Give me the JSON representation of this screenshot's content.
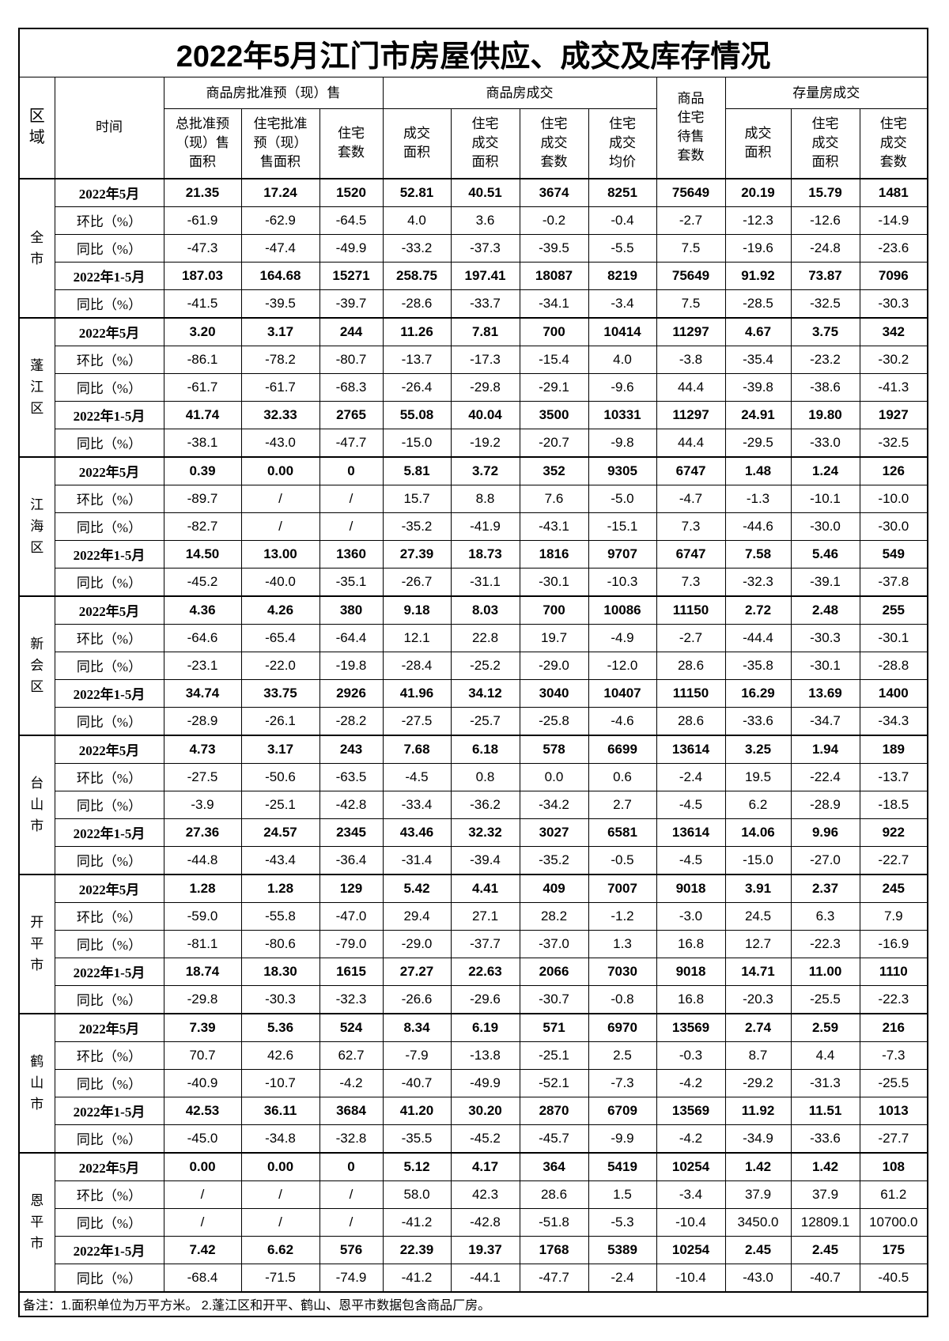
{
  "title": "2022年5月江门市房屋供应、成交及库存情况",
  "headers": {
    "region": "区域",
    "time": "时间",
    "group_presale": "商品房批准预（现）售",
    "group_deal": "商品房成交",
    "unsold": "商品住宅待售套数",
    "group_stock": "存量房成交",
    "columns": [
      "总批准预（现）售面积",
      "住宅批准预（现）售面积",
      "住宅套数",
      "成交面积",
      "住宅成交面积",
      "住宅成交套数",
      "住宅成交均价",
      "成交面积",
      "住宅成交面积",
      "住宅成交套数"
    ]
  },
  "regions": [
    {
      "name": "全市",
      "rows": [
        {
          "time": "2022年5月",
          "bold": true,
          "values": [
            "21.35",
            "17.24",
            "1520",
            "52.81",
            "40.51",
            "3674",
            "8251",
            "75649",
            "20.19",
            "15.79",
            "1481"
          ]
        },
        {
          "time": "环比（%）",
          "values": [
            "-61.9",
            "-62.9",
            "-64.5",
            "4.0",
            "3.6",
            "-0.2",
            "-0.4",
            "-2.7",
            "-12.3",
            "-12.6",
            "-14.9"
          ]
        },
        {
          "time": "同比（%）",
          "values": [
            "-47.3",
            "-47.4",
            "-49.9",
            "-33.2",
            "-37.3",
            "-39.5",
            "-5.5",
            "7.5",
            "-19.6",
            "-24.8",
            "-23.6"
          ]
        },
        {
          "time": "2022年1-5月",
          "bold": true,
          "values": [
            "187.03",
            "164.68",
            "15271",
            "258.75",
            "197.41",
            "18087",
            "8219",
            "75649",
            "91.92",
            "73.87",
            "7096"
          ]
        },
        {
          "time": "同比（%）",
          "values": [
            "-41.5",
            "-39.5",
            "-39.7",
            "-28.6",
            "-33.7",
            "-34.1",
            "-3.4",
            "7.5",
            "-28.5",
            "-32.5",
            "-30.3"
          ]
        }
      ]
    },
    {
      "name": "蓬江区",
      "rows": [
        {
          "time": "2022年5月",
          "bold": true,
          "values": [
            "3.20",
            "3.17",
            "244",
            "11.26",
            "7.81",
            "700",
            "10414",
            "11297",
            "4.67",
            "3.75",
            "342"
          ]
        },
        {
          "time": "环比（%）",
          "values": [
            "-86.1",
            "-78.2",
            "-80.7",
            "-13.7",
            "-17.3",
            "-15.4",
            "4.0",
            "-3.8",
            "-35.4",
            "-23.2",
            "-30.2"
          ]
        },
        {
          "time": "同比（%）",
          "values": [
            "-61.7",
            "-61.7",
            "-68.3",
            "-26.4",
            "-29.8",
            "-29.1",
            "-9.6",
            "44.4",
            "-39.8",
            "-38.6",
            "-41.3"
          ]
        },
        {
          "time": "2022年1-5月",
          "bold": true,
          "values": [
            "41.74",
            "32.33",
            "2765",
            "55.08",
            "40.04",
            "3500",
            "10331",
            "11297",
            "24.91",
            "19.80",
            "1927"
          ]
        },
        {
          "time": "同比（%）",
          "values": [
            "-38.1",
            "-43.0",
            "-47.7",
            "-15.0",
            "-19.2",
            "-20.7",
            "-9.8",
            "44.4",
            "-29.5",
            "-33.0",
            "-32.5"
          ]
        }
      ]
    },
    {
      "name": "江海区",
      "rows": [
        {
          "time": "2022年5月",
          "bold": true,
          "values": [
            "0.39",
            "0.00",
            "0",
            "5.81",
            "3.72",
            "352",
            "9305",
            "6747",
            "1.48",
            "1.24",
            "126"
          ]
        },
        {
          "time": "环比（%）",
          "values": [
            "-89.7",
            "/",
            "/",
            "15.7",
            "8.8",
            "7.6",
            "-5.0",
            "-4.7",
            "-1.3",
            "-10.1",
            "-10.0"
          ]
        },
        {
          "time": "同比（%）",
          "values": [
            "-82.7",
            "/",
            "/",
            "-35.2",
            "-41.9",
            "-43.1",
            "-15.1",
            "7.3",
            "-44.6",
            "-30.0",
            "-30.0"
          ]
        },
        {
          "time": "2022年1-5月",
          "bold": true,
          "values": [
            "14.50",
            "13.00",
            "1360",
            "27.39",
            "18.73",
            "1816",
            "9707",
            "6747",
            "7.58",
            "5.46",
            "549"
          ]
        },
        {
          "time": "同比（%）",
          "values": [
            "-45.2",
            "-40.0",
            "-35.1",
            "-26.7",
            "-31.1",
            "-30.1",
            "-10.3",
            "7.3",
            "-32.3",
            "-39.1",
            "-37.8"
          ]
        }
      ]
    },
    {
      "name": "新会区",
      "rows": [
        {
          "time": "2022年5月",
          "bold": true,
          "values": [
            "4.36",
            "4.26",
            "380",
            "9.18",
            "8.03",
            "700",
            "10086",
            "11150",
            "2.72",
            "2.48",
            "255"
          ]
        },
        {
          "time": "环比（%）",
          "values": [
            "-64.6",
            "-65.4",
            "-64.4",
            "12.1",
            "22.8",
            "19.7",
            "-4.9",
            "-2.7",
            "-44.4",
            "-30.3",
            "-30.1"
          ]
        },
        {
          "time": "同比（%）",
          "values": [
            "-23.1",
            "-22.0",
            "-19.8",
            "-28.4",
            "-25.2",
            "-29.0",
            "-12.0",
            "28.6",
            "-35.8",
            "-30.1",
            "-28.8"
          ]
        },
        {
          "time": "2022年1-5月",
          "bold": true,
          "values": [
            "34.74",
            "33.75",
            "2926",
            "41.96",
            "34.12",
            "3040",
            "10407",
            "11150",
            "16.29",
            "13.69",
            "1400"
          ]
        },
        {
          "time": "同比（%）",
          "values": [
            "-28.9",
            "-26.1",
            "-28.2",
            "-27.5",
            "-25.7",
            "-25.8",
            "-4.6",
            "28.6",
            "-33.6",
            "-34.7",
            "-34.3"
          ]
        }
      ]
    },
    {
      "name": "台山市",
      "rows": [
        {
          "time": "2022年5月",
          "bold": true,
          "values": [
            "4.73",
            "3.17",
            "243",
            "7.68",
            "6.18",
            "578",
            "6699",
            "13614",
            "3.25",
            "1.94",
            "189"
          ]
        },
        {
          "time": "环比（%）",
          "values": [
            "-27.5",
            "-50.6",
            "-63.5",
            "-4.5",
            "0.8",
            "0.0",
            "0.6",
            "-2.4",
            "19.5",
            "-22.4",
            "-13.7"
          ]
        },
        {
          "time": "同比（%）",
          "values": [
            "-3.9",
            "-25.1",
            "-42.8",
            "-33.4",
            "-36.2",
            "-34.2",
            "2.7",
            "-4.5",
            "6.2",
            "-28.9",
            "-18.5"
          ]
        },
        {
          "time": "2022年1-5月",
          "bold": true,
          "values": [
            "27.36",
            "24.57",
            "2345",
            "43.46",
            "32.32",
            "3027",
            "6581",
            "13614",
            "14.06",
            "9.96",
            "922"
          ]
        },
        {
          "time": "同比（%）",
          "values": [
            "-44.8",
            "-43.4",
            "-36.4",
            "-31.4",
            "-39.4",
            "-35.2",
            "-0.5",
            "-4.5",
            "-15.0",
            "-27.0",
            "-22.7"
          ]
        }
      ]
    },
    {
      "name": "开平市",
      "rows": [
        {
          "time": "2022年5月",
          "bold": true,
          "values": [
            "1.28",
            "1.28",
            "129",
            "5.42",
            "4.41",
            "409",
            "7007",
            "9018",
            "3.91",
            "2.37",
            "245"
          ]
        },
        {
          "time": "环比（%）",
          "values": [
            "-59.0",
            "-55.8",
            "-47.0",
            "29.4",
            "27.1",
            "28.2",
            "-1.2",
            "-3.0",
            "24.5",
            "6.3",
            "7.9"
          ]
        },
        {
          "time": "同比（%）",
          "values": [
            "-81.1",
            "-80.6",
            "-79.0",
            "-29.0",
            "-37.7",
            "-37.0",
            "1.3",
            "16.8",
            "12.7",
            "-22.3",
            "-16.9"
          ]
        },
        {
          "time": "2022年1-5月",
          "bold": true,
          "values": [
            "18.74",
            "18.30",
            "1615",
            "27.27",
            "22.63",
            "2066",
            "7030",
            "9018",
            "14.71",
            "11.00",
            "1110"
          ]
        },
        {
          "time": "同比（%）",
          "values": [
            "-29.8",
            "-30.3",
            "-32.3",
            "-26.6",
            "-29.6",
            "-30.7",
            "-0.8",
            "16.8",
            "-20.3",
            "-25.5",
            "-22.3"
          ]
        }
      ]
    },
    {
      "name": "鹤山市",
      "rows": [
        {
          "time": "2022年5月",
          "bold": true,
          "values": [
            "7.39",
            "5.36",
            "524",
            "8.34",
            "6.19",
            "571",
            "6970",
            "13569",
            "2.74",
            "2.59",
            "216"
          ]
        },
        {
          "time": "环比（%）",
          "values": [
            "70.7",
            "42.6",
            "62.7",
            "-7.9",
            "-13.8",
            "-25.1",
            "2.5",
            "-0.3",
            "8.7",
            "4.4",
            "-7.3"
          ]
        },
        {
          "time": "同比（%）",
          "values": [
            "-40.9",
            "-10.7",
            "-4.2",
            "-40.7",
            "-49.9",
            "-52.1",
            "-7.3",
            "-4.2",
            "-29.2",
            "-31.3",
            "-25.5"
          ]
        },
        {
          "time": "2022年1-5月",
          "bold": true,
          "values": [
            "42.53",
            "36.11",
            "3684",
            "41.20",
            "30.20",
            "2870",
            "6709",
            "13569",
            "11.92",
            "11.51",
            "1013"
          ]
        },
        {
          "time": "同比（%）",
          "values": [
            "-45.0",
            "-34.8",
            "-32.8",
            "-35.5",
            "-45.2",
            "-45.7",
            "-9.9",
            "-4.2",
            "-34.9",
            "-33.6",
            "-27.7"
          ]
        }
      ]
    },
    {
      "name": "恩平市",
      "rows": [
        {
          "time": "2022年5月",
          "bold": true,
          "values": [
            "0.00",
            "0.00",
            "0",
            "5.12",
            "4.17",
            "364",
            "5419",
            "10254",
            "1.42",
            "1.42",
            "108"
          ]
        },
        {
          "time": "环比（%）",
          "values": [
            "/",
            "/",
            "/",
            "58.0",
            "42.3",
            "28.6",
            "1.5",
            "-3.4",
            "37.9",
            "37.9",
            "61.2"
          ]
        },
        {
          "time": "同比（%）",
          "values": [
            "/",
            "/",
            "/",
            "-41.2",
            "-42.8",
            "-51.8",
            "-5.3",
            "-10.4",
            "3450.0",
            "12809.1",
            "10700.0"
          ]
        },
        {
          "time": "2022年1-5月",
          "bold": true,
          "values": [
            "7.42",
            "6.62",
            "576",
            "22.39",
            "19.37",
            "1768",
            "5389",
            "10254",
            "2.45",
            "2.45",
            "175"
          ]
        },
        {
          "time": "同比（%）",
          "values": [
            "-68.4",
            "-71.5",
            "-74.9",
            "-41.2",
            "-44.1",
            "-47.7",
            "-2.4",
            "-10.4",
            "-43.0",
            "-40.7",
            "-40.5"
          ]
        }
      ]
    }
  ],
  "note": "备注：1.面积单位为万平方米。 2.蓬江区和开平、鹤山、恩平市数据包含商品厂房。"
}
